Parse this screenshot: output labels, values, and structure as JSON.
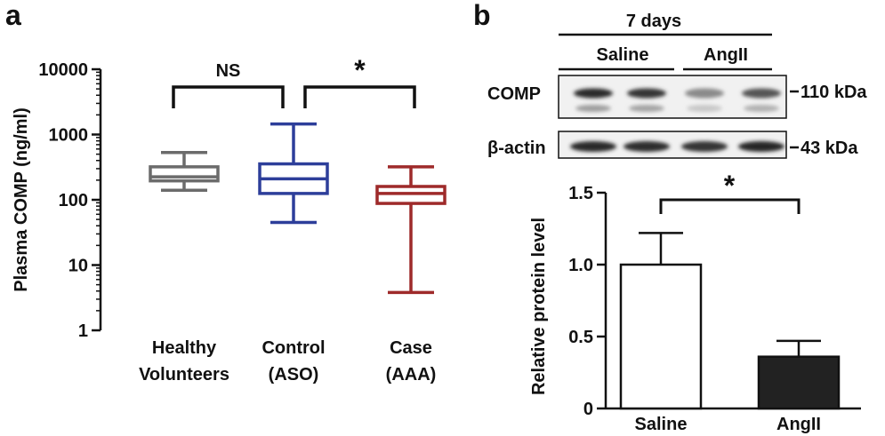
{
  "panels": {
    "a": {
      "label": "a"
    },
    "b": {
      "label": "b"
    }
  },
  "chart_data": [
    {
      "type": "boxplot",
      "panel": "a",
      "ylabel": "Plasma COMP (ng/ml)",
      "yscale": "log",
      "ylim": [
        1,
        10000
      ],
      "yticks": [
        "1",
        "10",
        "100",
        "1000",
        "10000"
      ],
      "ytick_values": [
        1,
        10,
        100,
        1000,
        10000
      ],
      "categories": [
        {
          "line1": "Healthy",
          "line2": "Volunteers",
          "color": "#6b6b6b",
          "min": 140,
          "q1": 195,
          "median": 225,
          "q3": 320,
          "max": 530
        },
        {
          "line1": "Control",
          "line2": "(ASO)",
          "color": "#2d3e9a",
          "min": 45,
          "q1": 125,
          "median": 210,
          "q3": 355,
          "max": 1450
        },
        {
          "line1": "Case",
          "line2": "(AAA)",
          "color": "#9e2a2a",
          "min": 3.8,
          "q1": 88,
          "median": 125,
          "q3": 160,
          "max": 320
        }
      ],
      "comparisons": [
        {
          "from": 0,
          "to": 1,
          "label": "NS"
        },
        {
          "from": 1,
          "to": 2,
          "label": "*"
        }
      ]
    },
    {
      "type": "bar",
      "panel": "b",
      "ylabel": "Relative protein level",
      "ylim": [
        0,
        1.5
      ],
      "yticks": [
        "0",
        "0.5",
        "1.0",
        "1.5"
      ],
      "ytick_values": [
        0,
        0.5,
        1.0,
        1.5
      ],
      "categories": [
        "Saline",
        "AngII"
      ],
      "values": [
        1.0,
        0.36
      ],
      "errors": [
        0.22,
        0.11
      ],
      "colors": [
        "#ffffff",
        "#222222"
      ],
      "significance": "*"
    }
  ],
  "blot": {
    "time_label": "7 days",
    "groups": [
      "Saline",
      "AngII"
    ],
    "rows": [
      {
        "name": "COMP",
        "marker": "110 kDa",
        "intensities": [
          0.9,
          0.85,
          0.45,
          0.7
        ]
      },
      {
        "name": "β-actin",
        "marker": "43 kDa",
        "intensities": [
          0.9,
          0.88,
          0.85,
          0.92
        ]
      }
    ]
  }
}
